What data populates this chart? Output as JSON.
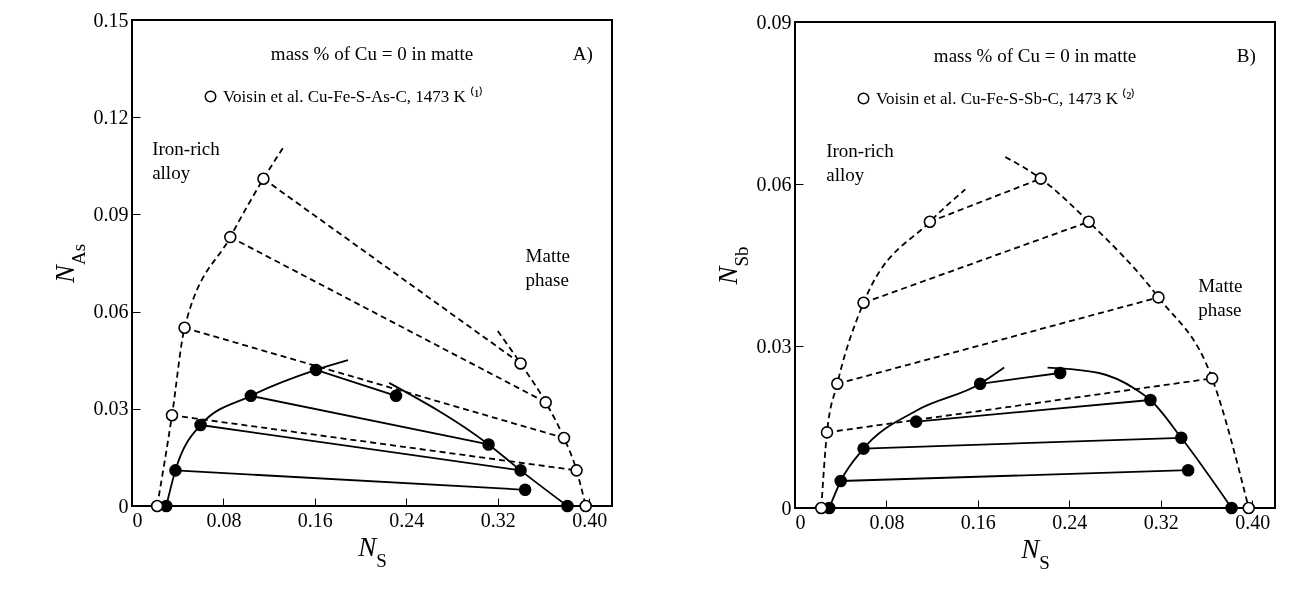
{
  "chart_data": [
    {
      "type": "scatter",
      "xlabel": "N$_{S}$",
      "ylabel": "N$_{As}$",
      "xlim": [
        0,
        0.42
      ],
      "ylim": [
        0,
        0.15
      ],
      "xticks": [
        0,
        0.08,
        0.16,
        0.24,
        0.32,
        {
          "value": 0.4,
          "label": "0.40"
        }
      ],
      "yticks": [
        0,
        0.03,
        0.06,
        0.09,
        0.12,
        0.15
      ],
      "legend": "top",
      "annotations": [
        "mass % of Cu = 0 in matte",
        "A)",
        "Iron-rich alloy",
        "Matte phase"
      ],
      "series": [
        {
          "type": "line",
          "line_style": "dashed",
          "color": "#000000",
          "x": [
            0.035,
            0.389
          ],
          "values": [
            0.028,
            0.011
          ]
        },
        {
          "type": "line",
          "line_style": "dashed",
          "color": "#000000",
          "x": [
            0.046,
            0.378
          ],
          "values": [
            0.055,
            0.021
          ]
        },
        {
          "type": "line",
          "line_style": "dashed",
          "color": "#000000",
          "x": [
            0.086,
            0.362
          ],
          "values": [
            0.083,
            0.032
          ]
        },
        {
          "type": "line",
          "line_style": "dashed",
          "color": "#000000",
          "x": [
            0.115,
            0.34
          ],
          "values": [
            0.101,
            0.044
          ]
        },
        {
          "type": "line",
          "line_style": "dashed",
          "color": "#000000",
          "x": [
            0.022,
            0.035,
            0.046,
            0.086,
            0.115,
            0.133
          ],
          "values": [
            0,
            0.028,
            0.055,
            0.083,
            0.101,
            0.111
          ]
        },
        {
          "type": "line",
          "line_style": "dashed",
          "color": "#000000",
          "x": [
            0.32,
            0.34,
            0.362,
            0.378,
            0.389,
            0.397
          ],
          "values": [
            0.054,
            0.044,
            0.032,
            0.021,
            0.011,
            0
          ]
        },
        {
          "type": "line",
          "line_style": "solid",
          "color": "#000000",
          "x": [
            0.038,
            0.344
          ],
          "values": [
            0.011,
            0.005
          ]
        },
        {
          "type": "line",
          "line_style": "solid",
          "color": "#000000",
          "x": [
            0.06,
            0.34
          ],
          "values": [
            0.025,
            0.011
          ]
        },
        {
          "type": "line",
          "line_style": "solid",
          "color": "#000000",
          "x": [
            0.104,
            0.312
          ],
          "values": [
            0.034,
            0.019
          ]
        },
        {
          "type": "line",
          "line_style": "solid",
          "color": "#000000",
          "x": [
            0.161,
            0.231
          ],
          "values": [
            0.042,
            0.034
          ]
        },
        {
          "type": "line",
          "line_style": "solid",
          "color": "#000000",
          "x": [
            0.03,
            0.038,
            0.06,
            0.104,
            0.161,
            0.189
          ],
          "values": [
            0,
            0.011,
            0.025,
            0.034,
            0.042,
            0.045
          ]
        },
        {
          "type": "line",
          "line_style": "solid",
          "color": "#000000",
          "x": [
            0.225,
            0.312,
            0.34,
            0.381
          ],
          "values": [
            0.038,
            0.019,
            0.011,
            0
          ]
        },
        {
          "marker": "circle",
          "color": "#000000",
          "x": [
            0.03,
            0.038,
            0.06,
            0.104,
            0.161,
            0.231,
            0.312,
            0.34,
            0.344,
            0.381
          ],
          "values": [
            0,
            0.011,
            0.025,
            0.034,
            0.042,
            0.034,
            0.019,
            0.011,
            0.005,
            0
          ]
        },
        {
          "marker": "circle",
          "color": "#ffffff",
          "name": "Voisin et al. Cu-Fe-S-As-C, 1473 K ⁽¹⁾",
          "x": [
            0.022,
            0.035,
            0.046,
            0.086,
            0.115,
            0.34,
            0.362,
            0.378,
            0.389,
            0.397
          ],
          "values": [
            0,
            0.028,
            0.055,
            0.083,
            0.101,
            0.044,
            0.032,
            0.021,
            0.011,
            0
          ]
        }
      ]
    },
    {
      "type": "scatter",
      "xlabel": "N$_{S}$",
      "ylabel": "N$_{Sb}$",
      "xlim": [
        0,
        0.42
      ],
      "ylim": [
        0,
        0.09
      ],
      "xticks": [
        0,
        0.08,
        0.16,
        0.24,
        0.32,
        {
          "value": 0.4,
          "label": "0.40"
        }
      ],
      "yticks": [
        0,
        0.03,
        0.06,
        0.09
      ],
      "legend": "top",
      "annotations": [
        "mass % of Cu = 0 in matte",
        "B)",
        "Iron-rich alloy",
        "Matte phase"
      ],
      "series": [
        {
          "type": "line",
          "line_style": "dashed",
          "color": "#000000",
          "x": [
            0.028,
            0.365
          ],
          "values": [
            0.014,
            0.024
          ]
        },
        {
          "type": "line",
          "line_style": "dashed",
          "color": "#000000",
          "x": [
            0.037,
            0.318
          ],
          "values": [
            0.023,
            0.039
          ]
        },
        {
          "type": "line",
          "line_style": "dashed",
          "color": "#000000",
          "x": [
            0.06,
            0.257
          ],
          "values": [
            0.038,
            0.053
          ]
        },
        {
          "type": "line",
          "line_style": "dashed",
          "color": "#000000",
          "x": [
            0.118,
            0.215
          ],
          "values": [
            0.053,
            0.061
          ]
        },
        {
          "type": "line",
          "line_style": "dashed",
          "color": "#000000",
          "x": [
            0.023,
            0.028,
            0.037,
            0.06,
            0.118,
            0.149
          ],
          "values": [
            0,
            0.014,
            0.023,
            0.038,
            0.053,
            0.059
          ]
        },
        {
          "type": "line",
          "line_style": "dashed",
          "color": "#000000",
          "x": [
            0.184,
            0.215,
            0.257,
            0.318,
            0.365,
            0.397
          ],
          "values": [
            0.065,
            0.061,
            0.053,
            0.039,
            0.024,
            0
          ]
        },
        {
          "type": "line",
          "line_style": "solid",
          "color": "#000000",
          "x": [
            0.04,
            0.344
          ],
          "values": [
            0.005,
            0.007
          ]
        },
        {
          "type": "line",
          "line_style": "solid",
          "color": "#000000",
          "x": [
            0.06,
            0.338
          ],
          "values": [
            0.011,
            0.013
          ]
        },
        {
          "type": "line",
          "line_style": "solid",
          "color": "#000000",
          "x": [
            0.106,
            0.311
          ],
          "values": [
            0.016,
            0.02
          ]
        },
        {
          "type": "line",
          "line_style": "solid",
          "color": "#000000",
          "x": [
            0.162,
            0.232
          ],
          "values": [
            0.023,
            0.025
          ]
        },
        {
          "type": "line",
          "line_style": "solid",
          "color": "#000000",
          "x": [
            0.03,
            0.04,
            0.06,
            0.106,
            0.162,
            0.183
          ],
          "values": [
            0,
            0.005,
            0.011,
            0.018,
            0.023,
            0.026
          ]
        },
        {
          "type": "line",
          "line_style": "solid",
          "color": "#000000",
          "x": [
            0.221,
            0.266,
            0.298,
            0.311,
            0.338,
            0.382
          ],
          "values": [
            0.026,
            0.025,
            0.022,
            0.02,
            0.013,
            0
          ]
        },
        {
          "marker": "circle",
          "color": "#000000",
          "x": [
            0.03,
            0.04,
            0.06,
            0.106,
            0.162,
            0.232,
            0.311,
            0.338,
            0.344,
            0.382
          ],
          "values": [
            0,
            0.005,
            0.011,
            0.016,
            0.023,
            0.025,
            0.02,
            0.013,
            0.007,
            0
          ]
        },
        {
          "marker": "circle",
          "color": "#ffffff",
          "name": "Voisin et al. Cu-Fe-S-Sb-C, 1473 K ⁽²⁾",
          "x": [
            0.023,
            0.028,
            0.037,
            0.06,
            0.118,
            0.215,
            0.257,
            0.318,
            0.365,
            0.397
          ],
          "values": [
            0,
            0.014,
            0.023,
            0.038,
            0.053,
            0.061,
            0.053,
            0.039,
            0.024,
            0
          ]
        }
      ]
    }
  ]
}
